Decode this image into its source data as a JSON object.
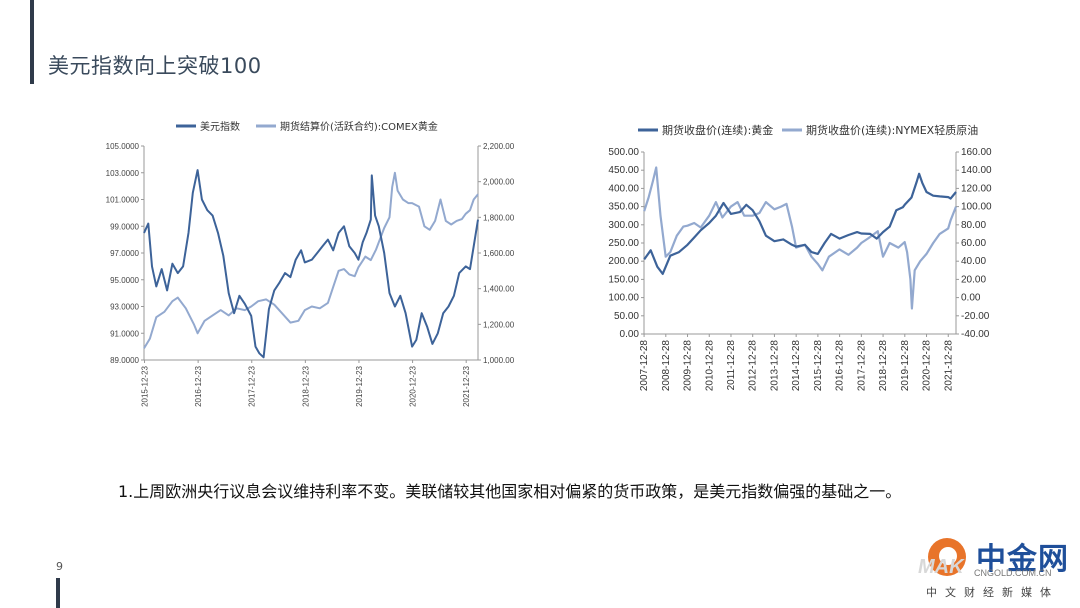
{
  "slide": {
    "title": "美元指数向上突破100",
    "page_number": "9",
    "caption": "1.上周欧洲央行议息会议维持利率不变。美联储较其他国家相对偏紧的货币政策，是美元指数偏强的基础之一。",
    "logo": {
      "name": "中金网",
      "url": "CNGOLD.COM.CN",
      "tagline": "中文财经新媒体",
      "mark": "MAK"
    },
    "colors": {
      "accent_bar": "#2f3a4a",
      "dark_series": "#3d6399",
      "light_series": "#93a9cf",
      "logo_orange": "#e8742a"
    }
  },
  "chart_data": [
    {
      "type": "line",
      "legend_position": "top",
      "x_tick_labels": [
        "2015-12-23",
        "2016-12-23",
        "2017-12-23",
        "2018-12-23",
        "2019-12-23",
        "2020-12-23",
        "2021-12-23"
      ],
      "x_range": [
        2015.97,
        2022.2
      ],
      "y_left": {
        "ylim": [
          89,
          105
        ],
        "ticks": [
          "89.0000",
          "91.0000",
          "93.0000",
          "95.0000",
          "97.0000",
          "99.0000",
          "101.0000",
          "103.0000",
          "105.0000"
        ]
      },
      "y_right": {
        "ylim": [
          1000,
          2200
        ],
        "ticks": [
          "1,000.00",
          "1,200.00",
          "1,400.00",
          "1,600.00",
          "1,800.00",
          "2,000.00",
          "2,200.00"
        ]
      },
      "series": [
        {
          "name": "美元指数",
          "axis": "left",
          "color": "#3d6399",
          "x": [
            2015.97,
            2016.05,
            2016.12,
            2016.2,
            2016.3,
            2016.4,
            2016.5,
            2016.6,
            2016.7,
            2016.8,
            2016.88,
            2016.97,
            2017.05,
            2017.15,
            2017.25,
            2017.35,
            2017.45,
            2017.55,
            2017.65,
            2017.75,
            2017.85,
            2017.97,
            2018.05,
            2018.12,
            2018.2,
            2018.3,
            2018.4,
            2018.5,
            2018.6,
            2018.7,
            2018.8,
            2018.9,
            2018.97,
            2019.1,
            2019.2,
            2019.3,
            2019.4,
            2019.5,
            2019.6,
            2019.7,
            2019.8,
            2019.9,
            2019.97,
            2020.05,
            2020.12,
            2020.2,
            2020.22,
            2020.28,
            2020.35,
            2020.45,
            2020.55,
            2020.65,
            2020.75,
            2020.85,
            2020.97,
            2021.05,
            2021.15,
            2021.25,
            2021.35,
            2021.45,
            2021.55,
            2021.65,
            2021.75,
            2021.85,
            2021.97,
            2022.05,
            2022.12,
            2022.2
          ],
          "values": [
            98.5,
            99.2,
            96.0,
            94.5,
            95.8,
            94.2,
            96.2,
            95.5,
            96.0,
            98.5,
            101.5,
            103.2,
            101.0,
            100.2,
            99.8,
            98.5,
            96.8,
            94.0,
            92.5,
            93.8,
            93.2,
            92.3,
            90.0,
            89.5,
            89.2,
            92.8,
            94.2,
            94.8,
            95.5,
            95.2,
            96.5,
            97.2,
            96.3,
            96.5,
            97.0,
            97.5,
            98.0,
            97.2,
            98.5,
            99.0,
            97.5,
            97.0,
            96.5,
            97.8,
            98.5,
            99.5,
            102.8,
            99.8,
            99.0,
            97.0,
            94.0,
            93.0,
            93.8,
            92.5,
            90.0,
            90.5,
            92.5,
            91.5,
            90.2,
            91.0,
            92.5,
            93.0,
            93.8,
            95.5,
            96.0,
            95.8,
            97.5,
            99.5
          ]
        },
        {
          "name": "期货结算价(活跃合约):COMEX黄金",
          "axis": "right",
          "color": "#93a9cf",
          "x": [
            2015.97,
            2016.08,
            2016.2,
            2016.35,
            2016.5,
            2016.6,
            2016.75,
            2016.9,
            2016.97,
            2017.1,
            2017.25,
            2017.4,
            2017.55,
            2017.7,
            2017.85,
            2017.97,
            2018.1,
            2018.25,
            2018.4,
            2018.55,
            2018.7,
            2018.85,
            2018.97,
            2019.1,
            2019.25,
            2019.4,
            2019.5,
            2019.6,
            2019.7,
            2019.8,
            2019.9,
            2019.97,
            2020.1,
            2020.2,
            2020.3,
            2020.45,
            2020.55,
            2020.6,
            2020.65,
            2020.7,
            2020.8,
            2020.9,
            2020.97,
            2021.1,
            2021.2,
            2021.3,
            2021.4,
            2021.5,
            2021.6,
            2021.7,
            2021.8,
            2021.9,
            2021.97,
            2022.05,
            2022.12,
            2022.2
          ],
          "values": [
            1065,
            1120,
            1240,
            1270,
            1330,
            1350,
            1290,
            1200,
            1150,
            1220,
            1250,
            1280,
            1250,
            1290,
            1280,
            1300,
            1330,
            1340,
            1310,
            1260,
            1210,
            1220,
            1280,
            1300,
            1290,
            1320,
            1410,
            1500,
            1510,
            1480,
            1470,
            1520,
            1580,
            1560,
            1620,
            1740,
            1800,
            1970,
            2050,
            1950,
            1900,
            1880,
            1880,
            1860,
            1750,
            1730,
            1780,
            1900,
            1780,
            1760,
            1780,
            1790,
            1820,
            1840,
            1900,
            1930
          ]
        }
      ]
    },
    {
      "type": "line",
      "legend_position": "top",
      "x_tick_labels": [
        "2007-12-28",
        "2008-12-28",
        "2009-12-28",
        "2010-12-28",
        "2011-12-28",
        "2012-12-28",
        "2013-12-28",
        "2014-12-28",
        "2015-12-28",
        "2016-12-28",
        "2017-12-28",
        "2018-12-28",
        "2019-12-28",
        "2020-12-28",
        "2021-12-28"
      ],
      "x_range": [
        2007.99,
        2022.35
      ],
      "y_left": {
        "ylim": [
          0,
          500
        ],
        "ticks": [
          "0.00",
          "50.00",
          "100.00",
          "150.00",
          "200.00",
          "250.00",
          "300.00",
          "350.00",
          "400.00",
          "450.00",
          "500.00"
        ]
      },
      "y_right": {
        "ylim": [
          -40,
          160
        ],
        "ticks": [
          "-40.00",
          "-20.00",
          "0.00",
          "20.00",
          "40.00",
          "60.00",
          "80.00",
          "100.00",
          "120.00",
          "140.00",
          "160.00"
        ]
      },
      "series": [
        {
          "name": "期货收盘价(连续):黄金",
          "axis": "left",
          "color": "#3d6399",
          "x": [
            2008.0,
            2008.3,
            2008.6,
            2008.85,
            2009.2,
            2009.6,
            2009.99,
            2010.3,
            2010.6,
            2010.99,
            2011.3,
            2011.65,
            2011.99,
            2012.4,
            2012.7,
            2012.99,
            2013.3,
            2013.6,
            2013.99,
            2014.4,
            2014.8,
            2014.99,
            2015.4,
            2015.7,
            2015.99,
            2016.3,
            2016.6,
            2016.99,
            2017.4,
            2017.8,
            2017.99,
            2018.4,
            2018.7,
            2018.99,
            2019.3,
            2019.6,
            2019.9,
            2019.99,
            2020.3,
            2020.55,
            2020.65,
            2020.8,
            2020.99,
            2021.3,
            2021.6,
            2021.99,
            2022.1,
            2022.35
          ],
          "values": [
            205,
            230,
            185,
            165,
            215,
            225,
            245,
            265,
            285,
            305,
            325,
            360,
            330,
            335,
            355,
            340,
            310,
            270,
            255,
            260,
            245,
            240,
            245,
            225,
            220,
            250,
            275,
            262,
            272,
            280,
            276,
            275,
            262,
            280,
            295,
            340,
            348,
            355,
            375,
            420,
            440,
            415,
            390,
            380,
            378,
            376,
            372,
            390
          ]
        },
        {
          "name": "期货收盘价(连续):NYMEX轻质原油",
          "axis": "right",
          "color": "#93a9cf",
          "x": [
            2008.0,
            2008.2,
            2008.4,
            2008.55,
            2008.75,
            2008.99,
            2009.2,
            2009.5,
            2009.8,
            2009.99,
            2010.3,
            2010.6,
            2010.99,
            2011.3,
            2011.6,
            2011.99,
            2012.3,
            2012.6,
            2012.99,
            2013.3,
            2013.6,
            2013.99,
            2014.3,
            2014.55,
            2014.8,
            2014.99,
            2015.4,
            2015.7,
            2015.99,
            2016.2,
            2016.5,
            2016.99,
            2017.4,
            2017.8,
            2017.99,
            2018.3,
            2018.75,
            2018.99,
            2019.3,
            2019.7,
            2019.99,
            2020.1,
            2020.25,
            2020.32,
            2020.45,
            2020.7,
            2020.99,
            2021.3,
            2021.6,
            2021.99,
            2022.1,
            2022.35
          ],
          "values": [
            95,
            110,
            128,
            143,
            90,
            45,
            50,
            68,
            78,
            79,
            82,
            77,
            90,
            105,
            88,
            100,
            105,
            90,
            90,
            93,
            105,
            97,
            100,
            103,
            78,
            55,
            58,
            45,
            37,
            30,
            45,
            53,
            47,
            55,
            60,
            65,
            73,
            45,
            60,
            55,
            61,
            50,
            20,
            -12,
            30,
            40,
            48,
            60,
            70,
            76,
            85,
            100
          ]
        }
      ]
    }
  ]
}
